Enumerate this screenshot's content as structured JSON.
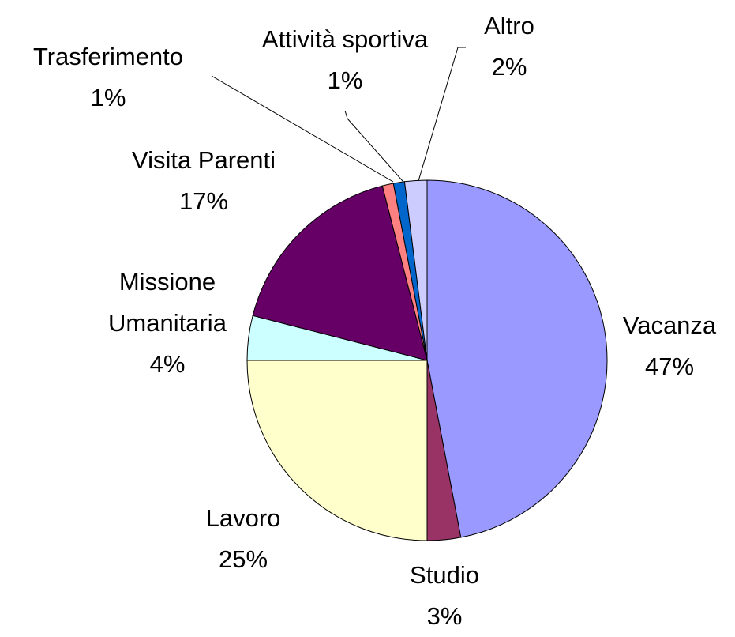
{
  "chart_data": {
    "type": "pie",
    "categories": [
      "Vacanza",
      "Studio",
      "Lavoro",
      "Missione Umanitaria",
      "Visita Parenti",
      "Trasferimento",
      "Attività sportiva",
      "Altro"
    ],
    "values": [
      47,
      3,
      25,
      4,
      17,
      1,
      1,
      2
    ],
    "value_labels": [
      "47%",
      "3%",
      "25%",
      "4%",
      "17%",
      "1%",
      "1%",
      "2%"
    ],
    "colors": [
      "#9999ff",
      "#993366",
      "#ffffcc",
      "#ccffff",
      "#660066",
      "#ff8080",
      "#0066cc",
      "#ccccff"
    ]
  }
}
